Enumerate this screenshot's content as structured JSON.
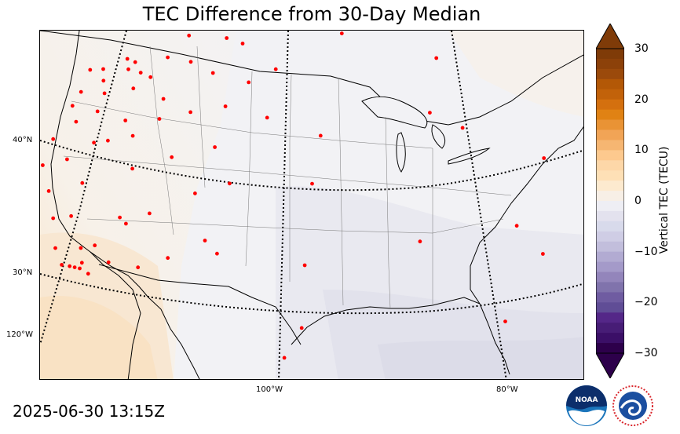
{
  "title": "TEC Difference from 30-Day Median",
  "timestamp": "2025-06-30 13:15Z",
  "colorbar": {
    "label": "Vertical TEC (TECU)",
    "ticks": [
      "30",
      "20",
      "10",
      "0",
      "−10",
      "−20",
      "−30"
    ],
    "min": -30,
    "max": 30,
    "extend": "both"
  },
  "graticule": {
    "lat_labels": [
      "40°N",
      "30°N",
      "120°W"
    ],
    "lon_labels": [
      "100°W",
      "80°W"
    ]
  },
  "logos": {
    "noaa": "NOAA",
    "nws": "NATIONAL WEATHER SERVICE"
  },
  "colors": {
    "low": "#2d004b",
    "neutral": "#f4f4f4",
    "high": "#7f3b08",
    "station": "#ff0000"
  },
  "stations": [
    [
      -122.3,
      48.9
    ],
    [
      -120.6,
      48.5
    ],
    [
      -117.9,
      48.6
    ],
    [
      -116.8,
      48.1
    ],
    [
      -111.0,
      49.0
    ],
    [
      -106.5,
      48.2
    ],
    [
      -122.5,
      47.3
    ],
    [
      -120.1,
      47.5
    ],
    [
      -117.4,
      47.7
    ],
    [
      -115.8,
      47.1
    ],
    [
      -113.0,
      47.7
    ],
    [
      -110.2,
      46.9
    ],
    [
      -104.6,
      47.6
    ],
    [
      -97.7,
      48.8
    ],
    [
      -93.5,
      48.0
    ],
    [
      -123.0,
      46.4
    ],
    [
      -119.5,
      46.4
    ],
    [
      -116.2,
      46.0
    ],
    [
      -114.5,
      46.5
    ],
    [
      -124.0,
      44.2
    ],
    [
      -121.9,
      44.9
    ],
    [
      -119.7,
      45.1
    ],
    [
      -116.2,
      43.6
    ],
    [
      -112.5,
      44.5
    ],
    [
      -107.5,
      45.7
    ],
    [
      -103.5,
      44.6
    ],
    [
      -100.7,
      45.4
    ],
    [
      -124.2,
      42.3
    ],
    [
      -121.6,
      42.0
    ],
    [
      -119.1,
      42.6
    ],
    [
      -117.6,
      42.4
    ],
    [
      -115.0,
      42.2
    ],
    [
      -112.5,
      43.0
    ],
    [
      -109.3,
      43.0
    ],
    [
      -105.7,
      43.0
    ],
    [
      -101.3,
      41.8
    ],
    [
      -95.9,
      40.3
    ],
    [
      -84.7,
      42.7
    ],
    [
      -83.1,
      47.0
    ],
    [
      -73.5,
      41.3
    ],
    [
      -81.5,
      42.0
    ],
    [
      -124.2,
      39.7
    ],
    [
      -122.6,
      39.9
    ],
    [
      -119.2,
      39.6
    ],
    [
      -114.3,
      39.6
    ],
    [
      -110.5,
      39.8
    ],
    [
      -106.3,
      40.0
    ],
    [
      -124.7,
      37.0
    ],
    [
      -123.1,
      37.9
    ],
    [
      -121.3,
      37.5
    ],
    [
      -119.5,
      37.2
    ],
    [
      -114.6,
      36.0
    ],
    [
      -113.9,
      35.4
    ],
    [
      -111.8,
      35.8
    ],
    [
      -107.7,
      36.7
    ],
    [
      -104.5,
      37.1
    ],
    [
      -96.7,
      36.7
    ],
    [
      -123.5,
      36.0
    ],
    [
      -122.8,
      35.9
    ],
    [
      -120.3,
      35.0
    ],
    [
      -117.8,
      34.4
    ],
    [
      -116.5,
      34.3
    ],
    [
      -123.1,
      34.2
    ],
    [
      -121.8,
      33.6
    ],
    [
      -119.3,
      33.5
    ],
    [
      -118.5,
      33.2
    ],
    [
      -118.0,
      33.0
    ],
    [
      -117.4,
      33.2
    ],
    [
      -117.5,
      32.8
    ],
    [
      -116.6,
      32.2
    ],
    [
      -114.9,
      32.7
    ],
    [
      -112.1,
      31.8
    ],
    [
      -109.5,
      32.1
    ],
    [
      -106.3,
      33.0
    ],
    [
      -105.1,
      31.9
    ],
    [
      -97.3,
      30.6
    ],
    [
      -87.0,
      32.8
    ],
    [
      -77.8,
      35.3
    ],
    [
      -97.5,
      25.9
    ],
    [
      -80.2,
      27.7
    ],
    [
      -75.0,
      23.9
    ],
    [
      -124.3,
      29.4
    ],
    [
      -98.9,
      23.7
    ],
    [
      -75.8,
      33.6
    ]
  ]
}
